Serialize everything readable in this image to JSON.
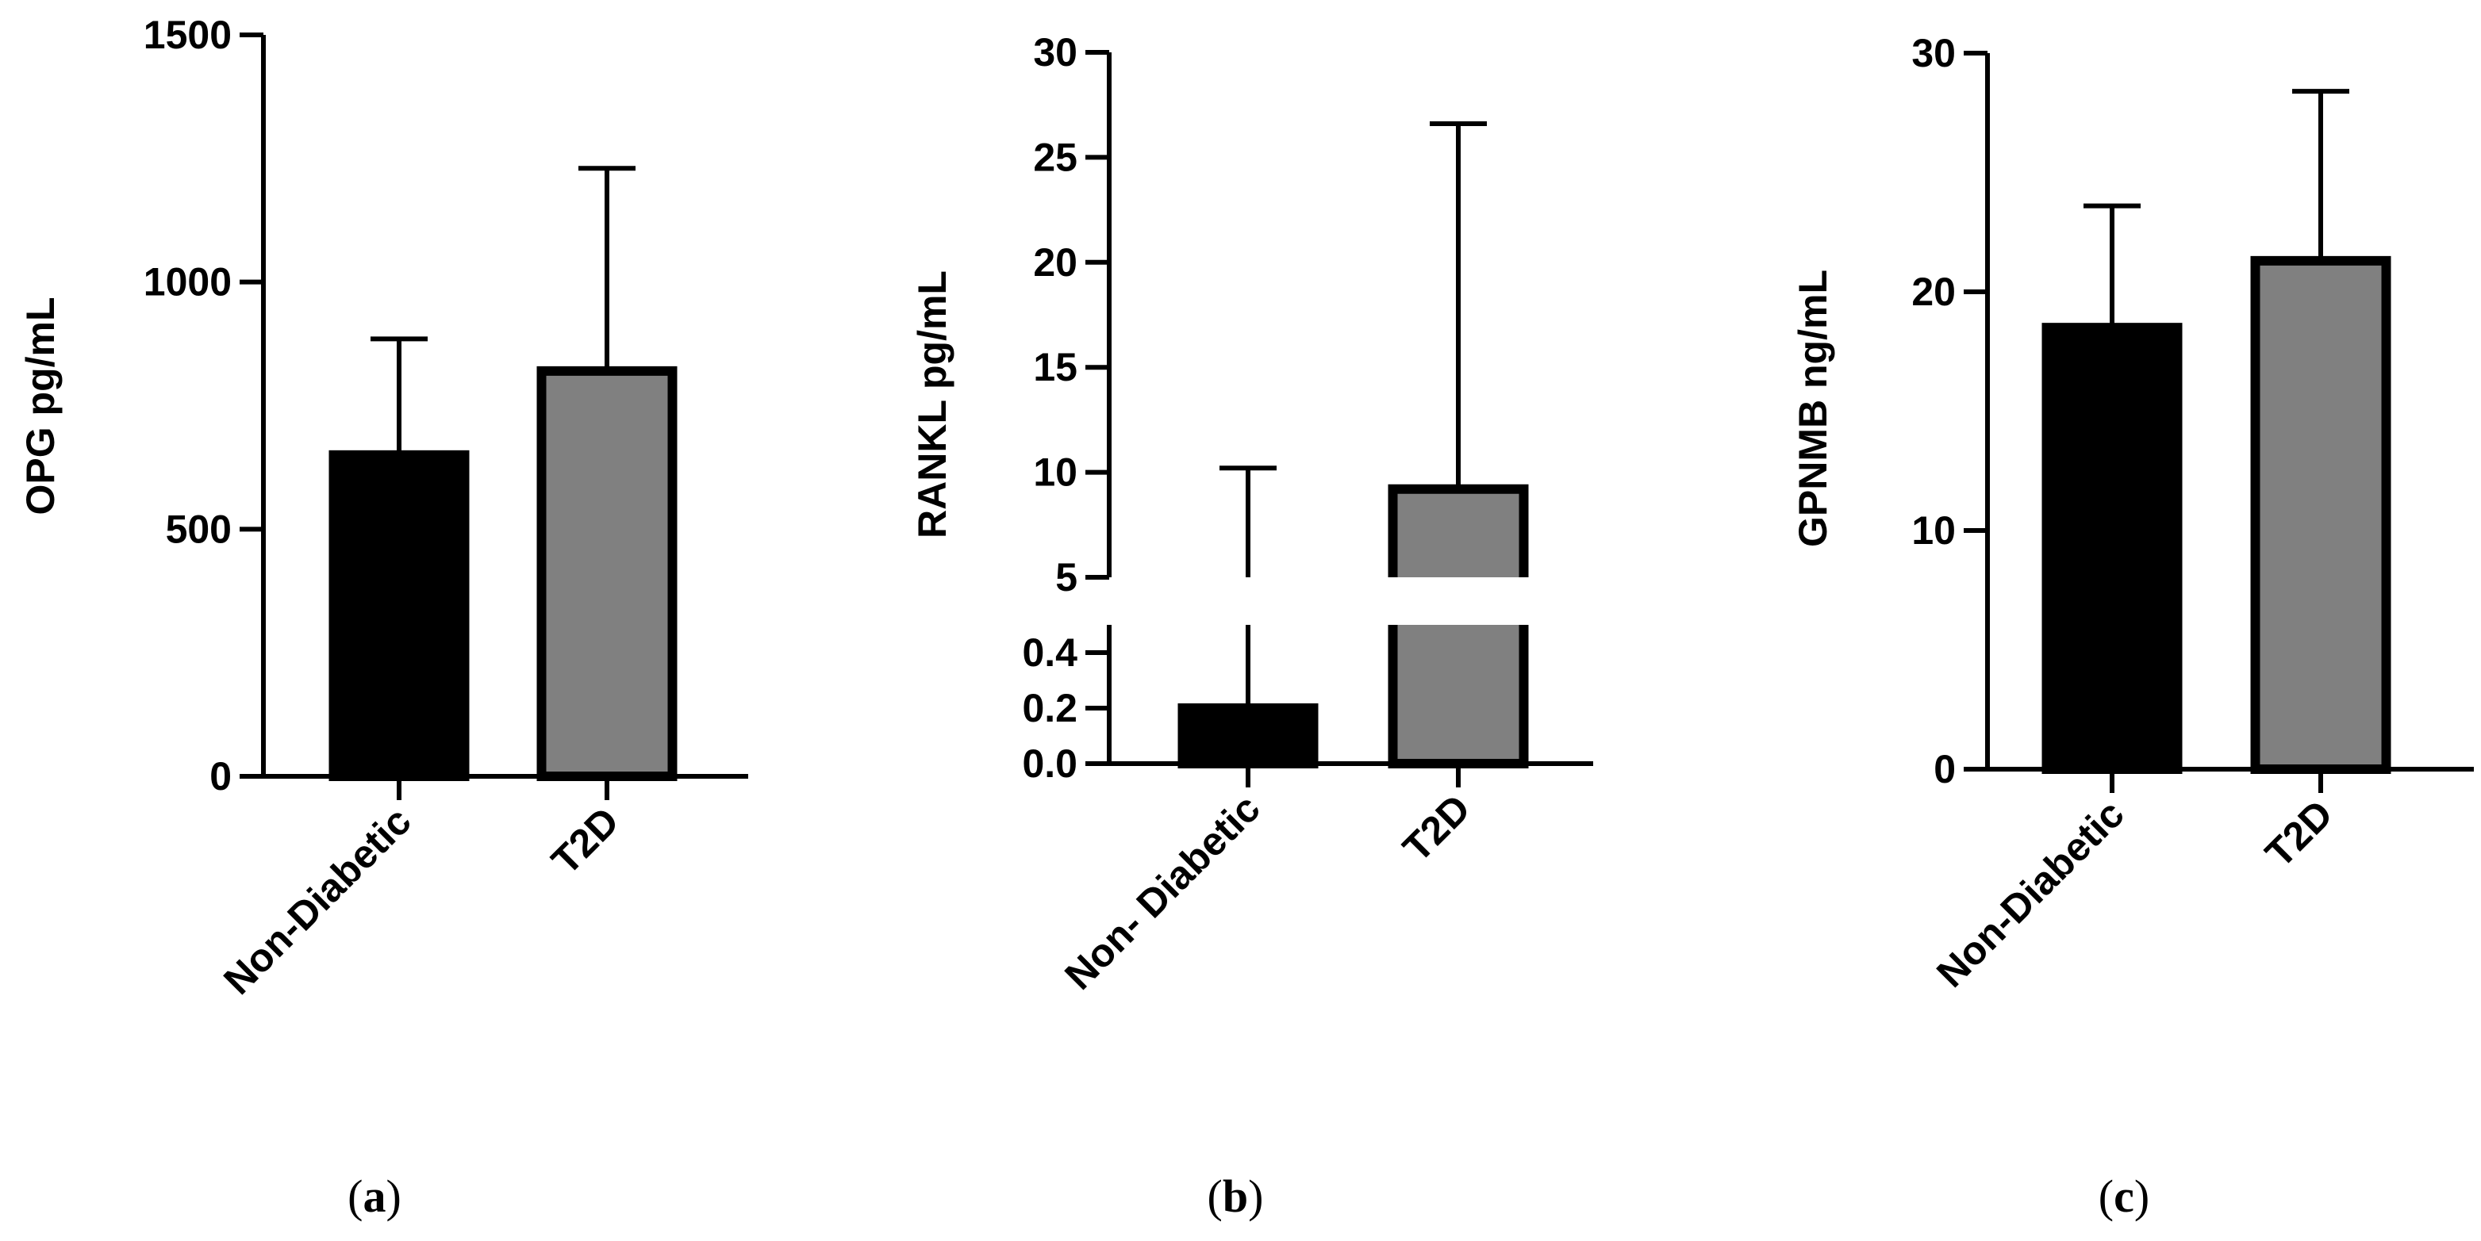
{
  "chart_data": [
    {
      "type": "bar",
      "panel": "a",
      "categories": [
        "Non-Diabetic",
        "T2D"
      ],
      "values": [
        650,
        820
      ],
      "error_upper": [
        885,
        1230
      ],
      "colors": [
        "#000000",
        "#808080"
      ],
      "ylabel": "OPG pg/mL",
      "ylim": [
        0,
        1500
      ],
      "yticks": [
        0,
        500,
        1000,
        1500
      ],
      "ytick_labels": [
        "0",
        "500",
        "1000",
        "1500"
      ]
    },
    {
      "type": "bar",
      "panel": "b",
      "categories": [
        "Non- Diabetic",
        "T2D"
      ],
      "values": [
        0.2,
        9.2
      ],
      "error_upper": [
        10.2,
        26.6
      ],
      "colors": [
        "#000000",
        "#808080"
      ],
      "ylabel": "RANKL  pg/mL",
      "ylim": [
        0,
        30
      ],
      "axis_break": {
        "lower_range": [
          0,
          0.5
        ],
        "upper_range": [
          5,
          30
        ]
      },
      "yticks_lower": [
        0.0,
        0.2,
        0.4
      ],
      "ytick_labels_lower": [
        "0.0",
        "0.2",
        "0.4"
      ],
      "yticks_upper": [
        5,
        10,
        15,
        20,
        25,
        30
      ],
      "ytick_labels_upper": [
        "5",
        "10",
        "15",
        "20",
        "25",
        "30"
      ]
    },
    {
      "type": "bar",
      "panel": "c",
      "categories": [
        "Non-Diabetic",
        "T2D"
      ],
      "values": [
        18.5,
        21.3
      ],
      "error_upper": [
        23.6,
        28.4
      ],
      "colors": [
        "#000000",
        "#808080"
      ],
      "ylabel": "GPNMB ng/mL",
      "ylim": [
        0,
        30
      ],
      "yticks": [
        0,
        10,
        20,
        30
      ],
      "ytick_labels": [
        "0",
        "10",
        "20",
        "30"
      ]
    }
  ],
  "panel_labels": [
    {
      "open": "(",
      "letter": "a",
      "close": ")"
    },
    {
      "open": "(",
      "letter": "b",
      "close": ")"
    },
    {
      "open": "(",
      "letter": "c",
      "close": ")"
    }
  ]
}
